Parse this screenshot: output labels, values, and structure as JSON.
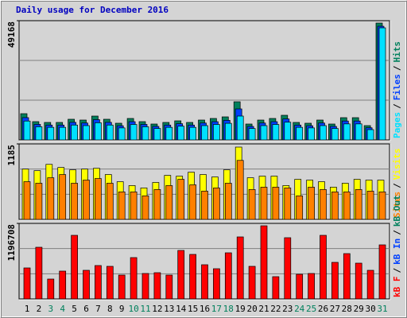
{
  "chart_data": [
    {
      "type": "bar",
      "title": "Daily usage for December 2016",
      "title_color": "#0000c0",
      "ylim": [
        0,
        49168
      ],
      "yticks": [
        49168
      ],
      "grid": true,
      "legend_order": "reverse",
      "series": [
        {
          "name": "Hits",
          "color": "#00805c",
          "values": [
            10817,
            7539,
            7212,
            7212,
            8523,
            8195,
            9834,
            8523,
            6884,
            8851,
            7539,
            6556,
            7212,
            7867,
            7212,
            8195,
            8851,
            9506,
            15734,
            6556,
            8195,
            8851,
            10162,
            7212,
            6884,
            8195,
            6556,
            9178,
            9178,
            5900,
            48187
          ]
        },
        {
          "name": "Files",
          "color": "#0040ff",
          "values": [
            9194,
            6408,
            6130,
            6130,
            7245,
            6966,
            8359,
            7245,
            5851,
            7523,
            6408,
            5573,
            6130,
            6687,
            6130,
            6966,
            7523,
            8080,
            12784,
            5573,
            6966,
            7523,
            8638,
            6130,
            5851,
            6966,
            5573,
            7801,
            7801,
            5015,
            46865
          ]
        },
        {
          "name": "Pages",
          "color": "#00e0ff",
          "values": [
            7788,
            5428,
            5193,
            5193,
            6137,
            5900,
            7080,
            6137,
            4956,
            6373,
            5428,
            4720,
            5193,
            5664,
            5193,
            5900,
            6373,
            6844,
            9834,
            4720,
            5900,
            6373,
            7317,
            5193,
            4956,
            5900,
            4720,
            6608,
            6608,
            4248,
            46210
          ]
        }
      ]
    },
    {
      "type": "bar",
      "ylim": [
        0,
        1185
      ],
      "yticks": [
        1185
      ],
      "grid": true,
      "legend_order": "reverse",
      "series": [
        {
          "name": "Visits",
          "color": "#ffff00",
          "values": [
            790,
            765,
            864,
            815,
            778,
            790,
            802,
            704,
            592,
            531,
            494,
            580,
            691,
            679,
            741,
            704,
            666,
            778,
            1135,
            654,
            679,
            679,
            531,
            629,
            617,
            592,
            506,
            568,
            629,
            617,
            617
          ]
        },
        {
          "name": "Sites",
          "color": "#ff8000",
          "values": [
            592,
            568,
            654,
            704,
            568,
            617,
            642,
            568,
            432,
            432,
            370,
            469,
            531,
            629,
            543,
            444,
            494,
            568,
            926,
            469,
            506,
            506,
            494,
            370,
            506,
            469,
            432,
            432,
            469,
            444,
            432
          ]
        }
      ]
    },
    {
      "type": "bar",
      "ylim": [
        0,
        1196708
      ],
      "yticks": [
        1196708
      ],
      "grid": true,
      "legend_order": "forward",
      "categories": [
        "1",
        "2",
        "3",
        "4",
        "5",
        "6",
        "7",
        "8",
        "9",
        "10",
        "11",
        "12",
        "13",
        "14",
        "15",
        "16",
        "17",
        "18",
        "19",
        "20",
        "21",
        "22",
        "23",
        "24",
        "25",
        "26",
        "27",
        "28",
        "29",
        "30",
        "31"
      ],
      "category_color": "#000000",
      "weekend_color": "#00805c",
      "weekend_indices": [
        2,
        3,
        9,
        10,
        16,
        17,
        23,
        24,
        30
      ],
      "series": [
        {
          "name": "kB F",
          "color": "#ff0000",
          "values": [
            491283,
            818805,
            314925,
            440895,
            1007760,
            453492,
            529074,
            516477,
            377910,
            655044,
            403104,
            415701,
            377910,
            768417,
            705432,
            541671,
            478686,
            730626,
            982566,
            516477,
            1158924,
            352716,
            969969,
            390507,
            403104,
            1007760,
            579462,
            718029,
            566865,
            453492,
            856596
          ]
        }
      ],
      "legend_extra": [
        {
          "name": "kB In",
          "color": "#0040ff"
        },
        {
          "name": "kB Out",
          "color": "#00805c"
        }
      ]
    }
  ],
  "legend_separator": "/"
}
